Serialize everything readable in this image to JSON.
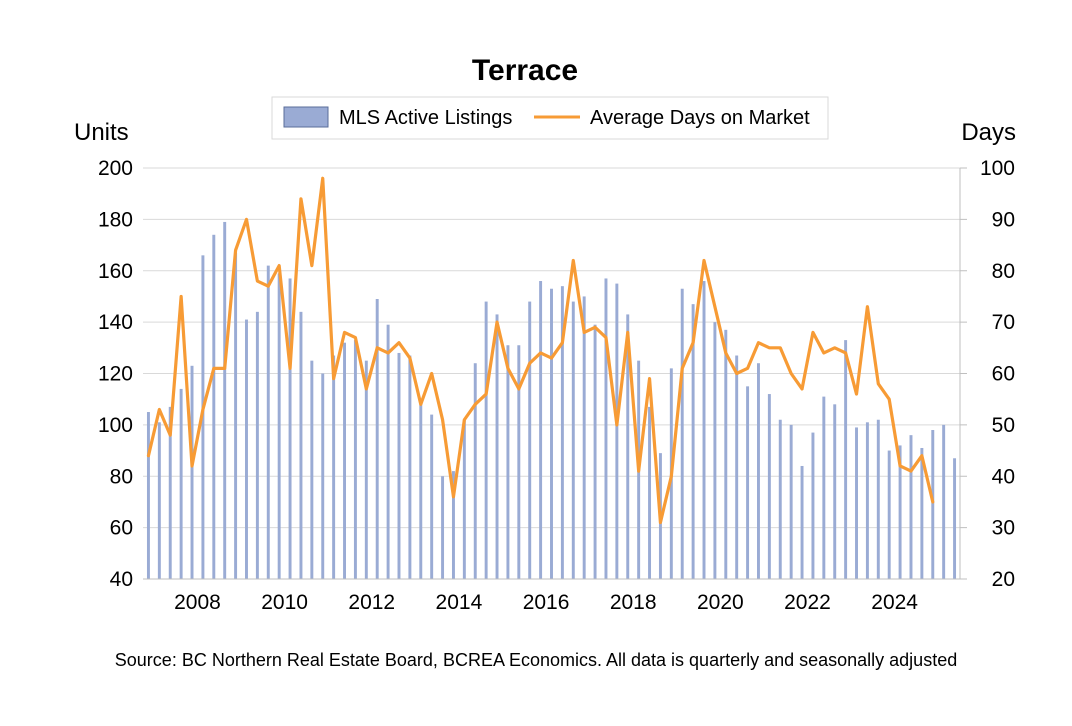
{
  "chart_data": {
    "type": "bar+line",
    "title": "Terrace",
    "y_left_unit": "Units",
    "y_right_unit": "Days",
    "y_left_lim": [
      40,
      200
    ],
    "y_right_lim": [
      20,
      100
    ],
    "y_left_ticks": [
      40,
      60,
      80,
      100,
      120,
      140,
      160,
      180,
      200
    ],
    "y_right_ticks": [
      20,
      30,
      40,
      50,
      60,
      70,
      80,
      90,
      100
    ],
    "x_ticks": [
      "2008",
      "2010",
      "2012",
      "2014",
      "2016",
      "2018",
      "2020",
      "2022",
      "2024"
    ],
    "grid": "horizontal",
    "legend_position": "top",
    "colors": {
      "bars": "#9aabd4",
      "line": "#f79b35"
    },
    "quarters_start": "2006 Q4",
    "series": [
      {
        "name": "MLS Active Listings",
        "axis": "left",
        "kind": "bar",
        "values": [
          105,
          101,
          107,
          114,
          123,
          166,
          174,
          179,
          167,
          141,
          144,
          162,
          159,
          157,
          144,
          125,
          120,
          127,
          132,
          133,
          125,
          149,
          139,
          128,
          127,
          108,
          104,
          80,
          82,
          102,
          124,
          148,
          143,
          131,
          131,
          148,
          156,
          153,
          154,
          148,
          150,
          139,
          157,
          155,
          143,
          125,
          107,
          89,
          122,
          153,
          147,
          156,
          140,
          137,
          127,
          115,
          124,
          112,
          102,
          100,
          84,
          97,
          111,
          108,
          133,
          99,
          101,
          102,
          90,
          92,
          96,
          91,
          98,
          100,
          87
        ]
      },
      {
        "name": "Average Days on Market",
        "axis": "right",
        "kind": "line",
        "values": [
          44,
          53,
          48,
          75,
          42,
          53,
          61,
          61,
          84,
          90,
          78,
          77,
          81,
          61,
          94,
          81,
          98,
          59,
          68,
          67,
          57,
          65,
          64,
          66,
          63,
          54,
          60,
          51,
          36,
          51,
          54,
          56,
          70,
          61,
          57,
          62,
          64,
          63,
          66,
          82,
          68,
          69,
          67,
          50,
          68,
          41,
          59,
          31,
          40,
          61,
          66,
          82,
          73,
          64,
          60,
          61,
          66,
          65,
          65,
          60,
          57,
          68,
          64,
          65,
          64,
          56,
          73,
          58,
          55,
          42,
          41,
          44,
          35
        ]
      }
    ]
  },
  "source": "Source: BC Northern Real Estate Board, BCREA Economics. All data is quarterly and seasonally adjusted"
}
